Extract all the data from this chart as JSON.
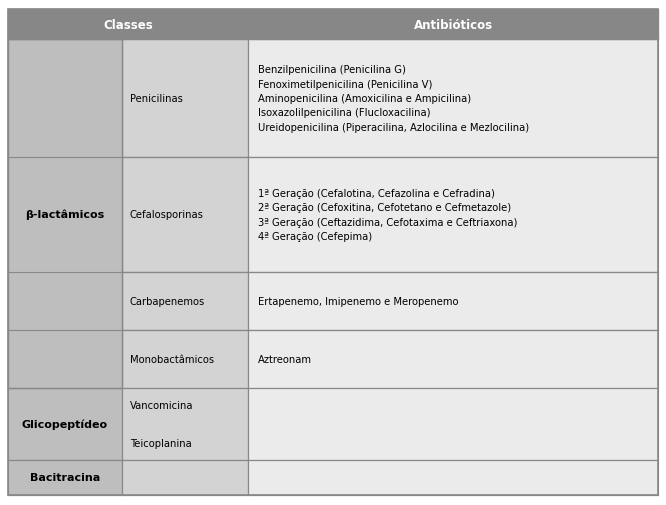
{
  "title_col1": "Classes",
  "title_col2": "Antibióticos",
  "header_bg": "#878787",
  "header_fg": "#ffffff",
  "col1_color": "#bebebe",
  "col2_color": "#d3d3d3",
  "col3_color": "#ebebeb",
  "border_color": "#888888",
  "rows": [
    {
      "class": "β-lactâmicos",
      "subclass": "Penicilinas",
      "antibiotics": "Benzilpenicilina (Penicilina G)\nFenoximetilpenicilina (Penicilina V)\nAminopenicilina (Amoxicilina e Ampicilina)\nIsoxazolilpenicilina (Flucloxacilina)\nUreidopenicilina (Piperacilina, Azlocilina e Mezlocilina)"
    },
    {
      "class": "",
      "subclass": "Cefalosporinas",
      "antibiotics": "1ª Geração (Cefalotina, Cefazolina e Cefradina)\n2ª Geração (Cefoxitina, Cefotetano e Cefmetazole)\n3ª Geração (Ceftazidima, Cefotaxima e Ceftriaxona)\n4ª Geração (Cefepima)"
    },
    {
      "class": "",
      "subclass": "Carbapenemos",
      "antibiotics": "Ertapenemo, Imipenemo e Meropenemo"
    },
    {
      "class": "",
      "subclass": "Monobactâmicos",
      "antibiotics": "Aztreonam"
    },
    {
      "class": "Glicopeptídeo",
      "subclass": "Vancomicina\n\nTeicoplanina",
      "antibiotics": ""
    },
    {
      "class": "Bacitracina",
      "subclass": "",
      "antibiotics": ""
    }
  ],
  "figsize": [
    6.66,
    5.06
  ],
  "dpi": 100,
  "font_size_header": 8.5,
  "font_size_body": 7.2,
  "font_size_class": 8.0
}
